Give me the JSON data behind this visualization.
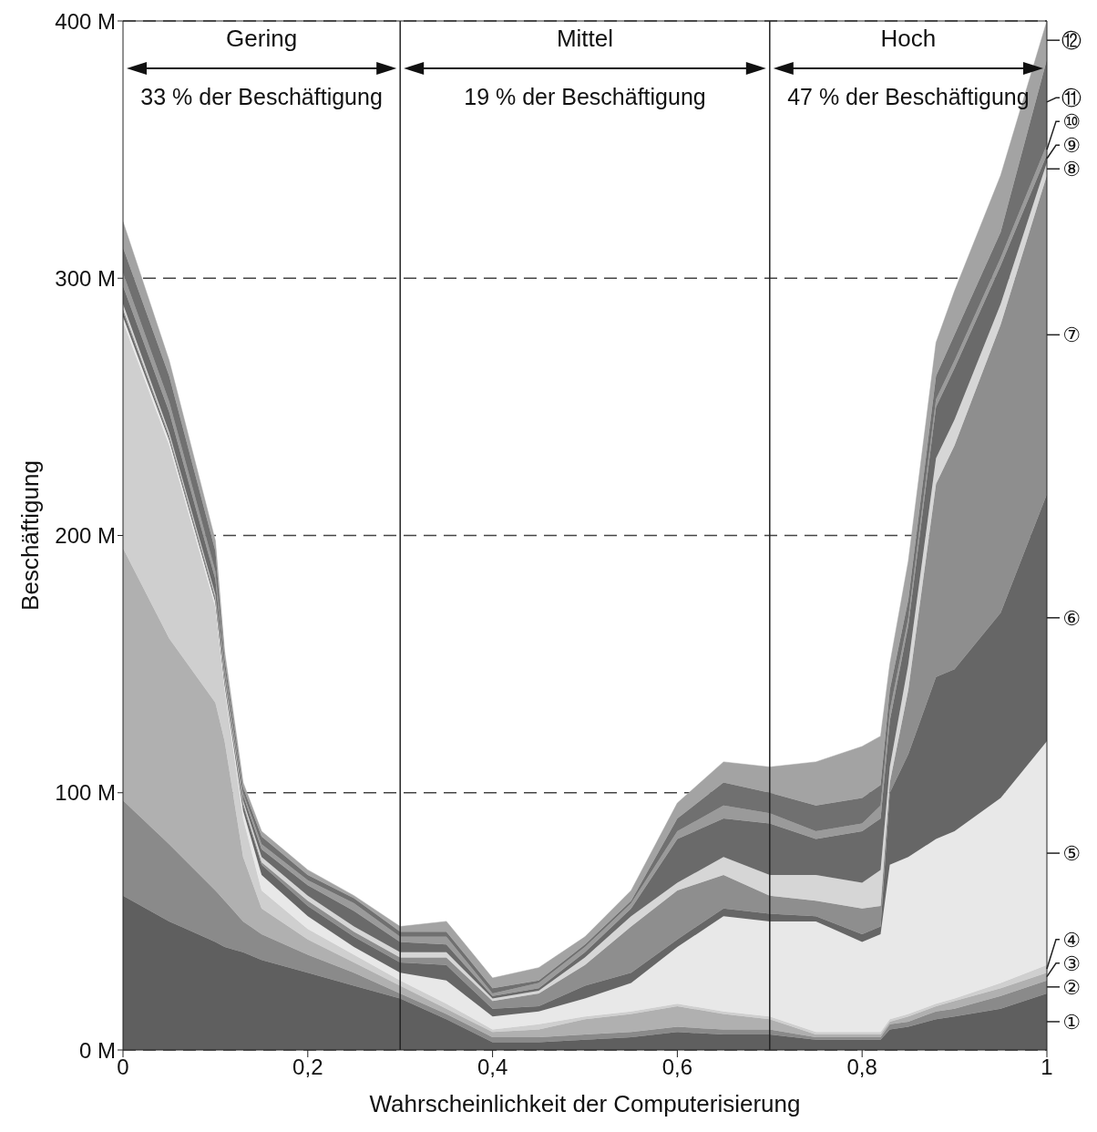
{
  "chart_data": {
    "type": "area",
    "stacked": true,
    "xlabel": "Wahrscheinlichkeit der Computerisierung",
    "ylabel": "Beschäftigung",
    "x": [
      0,
      0.05,
      0.1,
      0.11,
      0.13,
      0.15,
      0.2,
      0.25,
      0.3,
      0.35,
      0.4,
      0.45,
      0.5,
      0.55,
      0.6,
      0.65,
      0.7,
      0.75,
      0.8,
      0.82,
      0.83,
      0.85,
      0.88,
      0.9,
      0.95,
      1
    ],
    "series": [
      {
        "name": "①",
        "color": "#5f5f5f",
        "values": [
          60,
          50,
          42,
          40,
          38,
          35,
          30,
          25,
          20,
          12,
          3,
          3,
          4,
          5,
          7,
          6,
          6,
          4,
          4,
          4,
          8,
          9,
          12,
          13,
          16,
          22
        ]
      },
      {
        "name": "②",
        "color": "#8a8a8a",
        "values": [
          37,
          30,
          20,
          18,
          12,
          10,
          7,
          5,
          2,
          2,
          2,
          2,
          2,
          2,
          2,
          2,
          2,
          1,
          1,
          1,
          2,
          2,
          3,
          3,
          5,
          5
        ]
      },
      {
        "name": "③",
        "color": "#b0b0b0",
        "values": [
          98,
          80,
          73,
          62,
          25,
          10,
          6,
          4,
          3,
          2,
          2,
          3,
          6,
          7,
          8,
          6,
          4,
          1,
          1,
          1,
          1,
          2,
          2,
          3,
          3,
          3
        ]
      },
      {
        "name": "④",
        "color": "#cfcfcf",
        "values": [
          88,
          75,
          37,
          20,
          15,
          7,
          4,
          3,
          2,
          2,
          1,
          2,
          1,
          1,
          1,
          1,
          1,
          1,
          1,
          1,
          1,
          1,
          1,
          1,
          2,
          3
        ]
      },
      {
        "name": "⑤",
        "color": "#e8e8e8",
        "values": [
          2,
          2,
          2,
          2,
          3,
          6,
          5,
          3,
          3,
          9,
          5,
          5,
          7,
          11,
          22,
          37,
          37,
          43,
          35,
          38,
          60,
          61,
          64,
          65,
          72,
          87
        ]
      },
      {
        "name": "⑥",
        "color": "#666666",
        "values": [
          2,
          1,
          1,
          1,
          2,
          4,
          4,
          4,
          4,
          6,
          3,
          2,
          5,
          4,
          3,
          3,
          3,
          2,
          3,
          3,
          28,
          40,
          63,
          63,
          72,
          96
        ]
      },
      {
        "name": "⑦",
        "color": "#8e8e8e",
        "values": [
          1,
          1,
          1,
          1,
          1,
          1,
          2,
          2,
          2,
          3,
          3,
          5,
          8,
          18,
          19,
          13,
          7,
          6,
          10,
          8,
          4,
          25,
          75,
          87,
          112,
          124
        ]
      },
      {
        "name": "⑧",
        "color": "#d6d6d6",
        "values": [
          2,
          1,
          1,
          1,
          1,
          2,
          2,
          2,
          2,
          2,
          1,
          1,
          3,
          4,
          3,
          7,
          8,
          10,
          10,
          14,
          6,
          10,
          10,
          10,
          8,
          5
        ]
      },
      {
        "name": "⑨",
        "color": "#6a6a6a",
        "values": [
          7,
          8,
          6,
          2,
          2,
          3,
          4,
          6,
          4,
          3,
          1,
          1,
          2,
          3,
          17,
          15,
          20,
          14,
          20,
          20,
          18,
          15,
          20,
          20,
          15,
          3
        ]
      },
      {
        "name": "⑩",
        "color": "#9a9a9a",
        "values": [
          5,
          4,
          3,
          2,
          1,
          2,
          2,
          3,
          2,
          3,
          1,
          2,
          2,
          2,
          3,
          5,
          4,
          3,
          3,
          5,
          4,
          3,
          3,
          3,
          3,
          4
        ]
      },
      {
        "name": "⑪",
        "color": "#707070",
        "values": [
          10,
          10,
          8,
          3,
          2,
          3,
          2,
          2,
          2,
          2,
          2,
          1,
          1,
          1,
          5,
          9,
          8,
          10,
          10,
          8,
          8,
          7,
          9,
          10,
          10,
          33
        ]
      },
      {
        "name": "⑫",
        "color": "#a3a3a3",
        "values": [
          10,
          6,
          4,
          3,
          2,
          2,
          2,
          1,
          2,
          4,
          4,
          5,
          3,
          4,
          6,
          8,
          10,
          17,
          20,
          19,
          10,
          15,
          13,
          17,
          22,
          15
        ]
      }
    ],
    "xlim": [
      0,
      1
    ],
    "xticks": [
      0,
      {
        "value": 0.2,
        "label": "0,2"
      },
      {
        "value": 0.4,
        "label": "0,4"
      },
      {
        "value": 0.6,
        "label": "0,6"
      },
      {
        "value": 0.8,
        "label": "0,8"
      },
      1
    ],
    "ylim": [
      0,
      400
    ],
    "yticks": [
      {
        "value": 0,
        "label": "0 M"
      },
      {
        "value": 100,
        "label": "100 M"
      },
      {
        "value": 200,
        "label": "200 M"
      },
      {
        "value": 300,
        "label": "300 M"
      },
      {
        "value": 400,
        "label": "400 M"
      }
    ],
    "grid": "y",
    "line_style": "dashed",
    "ref_lines": [
      {
        "axis": "x",
        "value": 0.3
      },
      {
        "axis": "x",
        "value": 0.7
      }
    ],
    "annotations": [
      "Gering",
      "33 % der Beschäftigung",
      "Mittel",
      "19 % der Beschäftigung",
      "Hoch",
      "47 % der Beschäftigung"
    ]
  }
}
